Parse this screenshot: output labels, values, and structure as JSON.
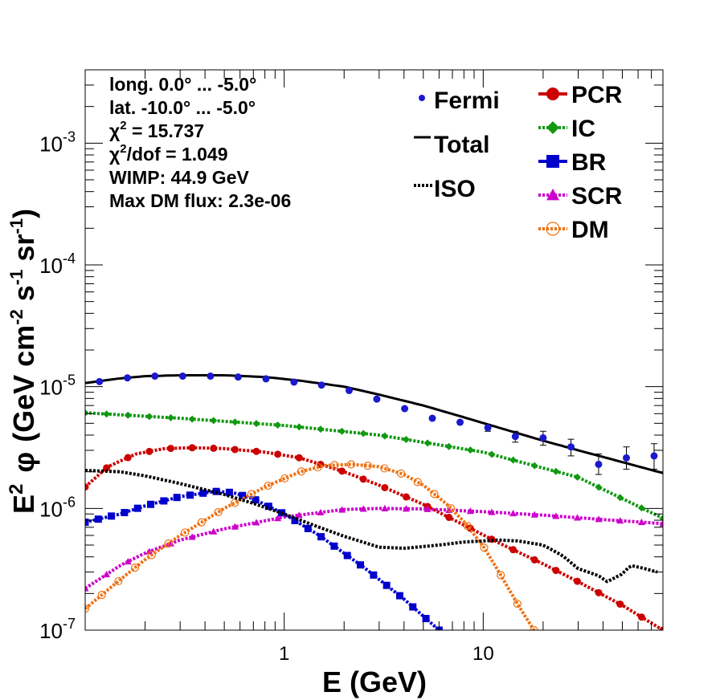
{
  "chart_data": {
    "type": "line",
    "xlabel": "E (GeV)",
    "ylabel_main": "E",
    "ylabel_sup": "2",
    "ylabel_phi": "φ",
    "ylabel_units": "(GeV cm",
    "ylabel_units_sup1": "-2",
    "ylabel_units_mid": " s",
    "ylabel_units_sup2": "-1",
    "ylabel_units_mid2": " sr",
    "ylabel_units_sup3": "-1",
    "ylabel_units_end": ")",
    "x_scale": "log",
    "y_scale": "log",
    "xlim": [
      0.1,
      80
    ],
    "ylim": [
      1e-07,
      0.004
    ],
    "x_tick_labels": [
      {
        "v": 1,
        "t": "1"
      },
      {
        "v": 10,
        "t": "10"
      }
    ],
    "y_tick_labels": [
      {
        "v": 1e-07,
        "base": "10",
        "exp": "-7"
      },
      {
        "v": 1e-06,
        "base": "10",
        "exp": "-6"
      },
      {
        "v": 1e-05,
        "base": "10",
        "exp": "-5"
      },
      {
        "v": 0.0001,
        "base": "10",
        "exp": "-4"
      },
      {
        "v": 0.001,
        "base": "10",
        "exp": "-3"
      }
    ],
    "annotations": [
      "long. 0.0° ... -5.0°",
      "lat. -10.0° ... -5.0°",
      "χ² = 15.737",
      "χ²/dof = 1.049",
      "WIMP: 44.9 GeV",
      "Max DM flux: 2.3e-06"
    ],
    "annotation_parts": [
      {
        "pre": "long. 0.0° ... -5.0°"
      },
      {
        "pre": "lat. -10.0° ... -5.0°"
      },
      {
        "pre": "χ",
        "sup": "2",
        "post": " = 15.737"
      },
      {
        "pre": "χ",
        "sup": "2",
        "post": "/dof = 1.049"
      },
      {
        "pre": "WIMP: 44.9 GeV"
      },
      {
        "pre": "Max DM flux: 2.3e-06"
      }
    ],
    "legend": {
      "left": [
        {
          "name": "Fermi",
          "style": "dot",
          "color": "#1a1acc"
        },
        {
          "name": "Total",
          "style": "line",
          "color": "#000000"
        },
        {
          "name": "ISO",
          "style": "dotted",
          "color": "#000000"
        }
      ],
      "right": [
        {
          "name": "PCR",
          "style": "circle",
          "color": "#cc0000"
        },
        {
          "name": "IC",
          "style": "diamond",
          "color": "#119911"
        },
        {
          "name": "BR",
          "style": "square",
          "color": "#0000cc"
        },
        {
          "name": "SCR",
          "style": "triangle",
          "color": "#cc00cc"
        },
        {
          "name": "DM",
          "style": "open-circle",
          "color": "#f07010"
        }
      ]
    },
    "fermi": {
      "x": [
        0.118,
        0.163,
        0.224,
        0.309,
        0.426,
        0.587,
        0.81,
        1.12,
        1.54,
        2.12,
        2.92,
        4.03,
        5.55,
        7.65,
        10.55,
        14.5,
        20.0,
        27.6,
        38.0,
        52.4,
        72.2
      ],
      "y": [
        1.1e-05,
        1.18e-05,
        1.22e-05,
        1.22e-05,
        1.22e-05,
        1.2e-05,
        1.16e-05,
        1.09e-05,
        1.03e-05,
        9.3e-06,
        7.9e-06,
        6.6e-06,
        5.5e-06,
        5.1e-06,
        4.6e-06,
        3.9e-06,
        3.8e-06,
        3.2e-06,
        2.3e-06,
        2.6e-06,
        2.7e-06
      ],
      "err_low": [
        0,
        0,
        0,
        0,
        0,
        0,
        0,
        0,
        0,
        0,
        0,
        0,
        0,
        0,
        3e-07,
        4e-07,
        5e-07,
        5e-07,
        4e-07,
        5e-07,
        6e-07
      ],
      "err_high": [
        0,
        0,
        0,
        0,
        0,
        0,
        0,
        0,
        0,
        0,
        0,
        0,
        0,
        0,
        3e-07,
        4e-07,
        5e-07,
        5e-07,
        5e-07,
        6e-07,
        7e-07
      ]
    },
    "series": [
      {
        "name": "Total",
        "color": "#000000",
        "dash": "solid",
        "marker": "none",
        "x": [
          0.1,
          0.15,
          0.2,
          0.3,
          0.5,
          0.8,
          1.2,
          2,
          3,
          5,
          8,
          12,
          20,
          30,
          50,
          80
        ],
        "y": [
          1.07e-05,
          1.17e-05,
          1.22e-05,
          1.24e-05,
          1.24e-05,
          1.2e-05,
          1.12e-05,
          1e-05,
          8.6e-06,
          7e-06,
          5.6e-06,
          4.6e-06,
          3.6e-06,
          3e-06,
          2.4e-06,
          1.95e-06
        ]
      },
      {
        "name": "IC",
        "color": "#119911",
        "dash": "dotted",
        "marker": "diamond",
        "x": [
          0.1,
          0.3,
          1,
          3,
          10,
          30,
          80
        ],
        "y": [
          6.1e-06,
          5.5e-06,
          4.8e-06,
          4e-06,
          2.9e-06,
          1.8e-06,
          8.3e-07
        ]
      },
      {
        "name": "PCR",
        "color": "#cc0000",
        "dash": "dotted",
        "marker": "circle",
        "x": [
          0.1,
          0.13,
          0.18,
          0.25,
          0.35,
          0.5,
          0.8,
          1.2,
          2,
          3,
          5,
          8,
          12,
          20,
          30,
          50,
          80
        ],
        "y": [
          1.5e-06,
          2.2e-06,
          2.8e-06,
          3.1e-06,
          3.15e-06,
          3.1e-06,
          2.9e-06,
          2.6e-06,
          2e-06,
          1.55e-06,
          1.08e-06,
          7.3e-07,
          5.2e-07,
          3.5e-07,
          2.5e-07,
          1.6e-07,
          1e-07
        ]
      },
      {
        "name": "BR",
        "color": "#0000cc",
        "dash": "dotted",
        "marker": "square",
        "x": [
          0.1,
          0.15,
          0.2,
          0.3,
          0.45,
          0.55,
          0.7,
          1.0,
          1.5,
          2.5,
          4,
          6
        ],
        "y": [
          7.7e-07,
          9e-07,
          1.05e-06,
          1.25e-06,
          1.38e-06,
          1.35e-06,
          1.2e-06,
          9e-07,
          6e-07,
          3.3e-07,
          1.8e-07,
          1e-07
        ]
      },
      {
        "name": "SCR",
        "color": "#cc00cc",
        "dash": "dotted",
        "marker": "triangle",
        "x": [
          0.1,
          0.15,
          0.2,
          0.3,
          0.5,
          1,
          2,
          3,
          5,
          10,
          20,
          40,
          80
        ],
        "y": [
          2.2e-07,
          3.4e-07,
          4.3e-07,
          5.5e-07,
          6.8e-07,
          8.5e-07,
          9.8e-07,
          1e-06,
          9.9e-07,
          9.4e-07,
          8.8e-07,
          8.1e-07,
          7.5e-07
        ]
      },
      {
        "name": "DM",
        "color": "#f07010",
        "dash": "dotted",
        "marker": "open-circle",
        "x": [
          0.1,
          0.15,
          0.2,
          0.3,
          0.5,
          0.8,
          1.2,
          1.6,
          2.2,
          3,
          4,
          5,
          6.5,
          8,
          10,
          12,
          15,
          18
        ],
        "y": [
          1.5e-07,
          2.6e-07,
          3.8e-07,
          6e-07,
          1e-06,
          1.5e-06,
          2e-06,
          2.25e-06,
          2.3e-06,
          2.2e-06,
          1.9e-06,
          1.55e-06,
          1.1e-06,
          7.8e-07,
          4.9e-07,
          3e-07,
          1.6e-07,
          1e-07
        ]
      },
      {
        "name": "ISO",
        "color": "#000000",
        "dash": "dotted",
        "marker": "none",
        "x": [
          0.1,
          0.15,
          0.2,
          0.3,
          0.5,
          0.7,
          1.0,
          1.5,
          2.0,
          3.0,
          4.0,
          6.0,
          8.0,
          10,
          12,
          15,
          20,
          25,
          30,
          38,
          42,
          50,
          55,
          65,
          75
        ],
        "y": [
          2.05e-06,
          2e-06,
          1.85e-06,
          1.6e-06,
          1.3e-06,
          1.1e-06,
          9e-07,
          7e-07,
          5.9e-07,
          4.8e-07,
          4.7e-07,
          5e-07,
          5.3e-07,
          5.4e-07,
          5.5e-07,
          5.4e-07,
          5e-07,
          4.1e-07,
          3.2e-07,
          2.8e-07,
          2.5e-07,
          2.9e-07,
          3.4e-07,
          3.2e-07,
          3e-07
        ]
      }
    ]
  }
}
